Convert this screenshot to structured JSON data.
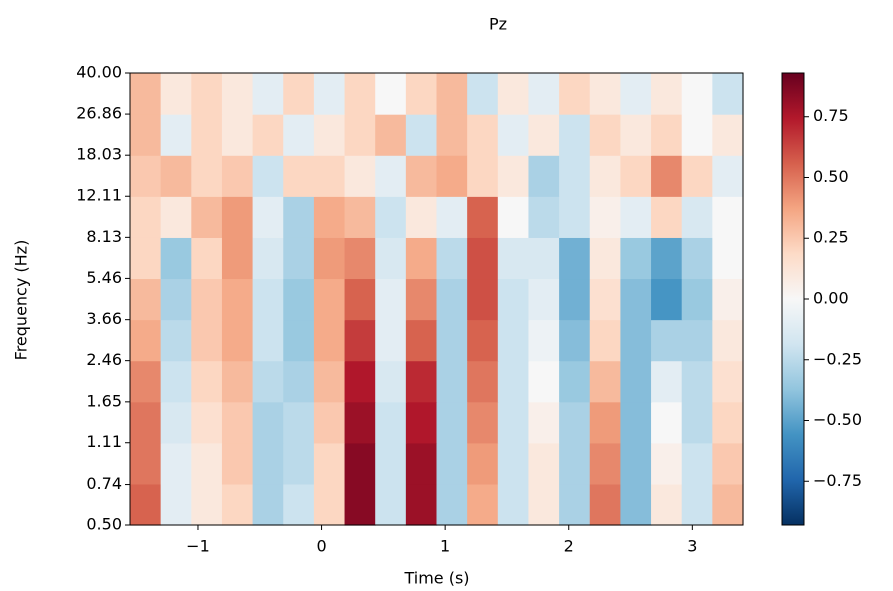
{
  "chart_data": {
    "type": "heatmap",
    "title": "Pz",
    "xlabel": "Time (s)",
    "ylabel": "Frequency (Hz)",
    "xlim": [
      -1.55,
      3.41
    ],
    "xticks": [
      {
        "value": -1,
        "label": "−1"
      },
      0,
      1,
      2,
      3
    ],
    "ylim": [
      0.5,
      40
    ],
    "ylog": true,
    "yticks": [
      {
        "value": 0.5,
        "label": "0.50"
      },
      {
        "value": 0.74,
        "label": "0.74"
      },
      {
        "value": 1.11,
        "label": "1.11"
      },
      {
        "value": 1.65,
        "label": "1.65"
      },
      {
        "value": 2.46,
        "label": "2.46"
      },
      {
        "value": 3.66,
        "label": "3.66"
      },
      {
        "value": 5.46,
        "label": "5.46"
      },
      {
        "value": 8.13,
        "label": "8.13"
      },
      {
        "value": 12.11,
        "label": "12.11"
      },
      {
        "value": 18.03,
        "label": "18.03"
      },
      {
        "value": 26.86,
        "label": "26.86"
      },
      {
        "value": 40,
        "label": "40.00"
      }
    ],
    "clim": [
      -0.93,
      0.93
    ],
    "cticks": [
      {
        "value": -0.75,
        "label": "−0.75"
      },
      {
        "value": -0.5,
        "label": "−0.50"
      },
      {
        "value": -0.25,
        "label": "−0.25"
      },
      {
        "value": 0,
        "label": "0.00"
      },
      {
        "value": 0.25,
        "label": "0.25"
      },
      {
        "value": 0.5,
        "label": "0.50"
      },
      {
        "value": 0.75,
        "label": "0.75"
      }
    ],
    "colormap": [
      "#053061",
      "#2166ac",
      "#4393c3",
      "#92c5de",
      "#d1e5f0",
      "#f7f7f7",
      "#fddbc7",
      "#f4a582",
      "#d6604d",
      "#b2182b",
      "#67001f"
    ],
    "z": [
      [
        0.55,
        -0.1,
        0.1,
        0.2,
        -0.3,
        -0.2,
        0.2,
        0.85,
        -0.2,
        0.8,
        -0.3,
        0.35,
        -0.2,
        0.1,
        -0.3,
        0.5,
        -0.4,
        0.1,
        -0.2,
        0.3
      ],
      [
        0.5,
        -0.1,
        0.1,
        0.25,
        -0.3,
        -0.25,
        0.2,
        0.85,
        -0.2,
        0.8,
        -0.3,
        0.4,
        -0.2,
        0.1,
        -0.3,
        0.45,
        -0.4,
        0.05,
        -0.2,
        0.25
      ],
      [
        0.5,
        -0.15,
        0.15,
        0.25,
        -0.3,
        -0.25,
        0.25,
        0.8,
        -0.2,
        0.75,
        -0.3,
        0.45,
        -0.2,
        0.05,
        -0.3,
        0.4,
        -0.4,
        0.0,
        -0.25,
        0.2
      ],
      [
        0.45,
        -0.2,
        0.2,
        0.3,
        -0.25,
        -0.3,
        0.3,
        0.75,
        -0.15,
        0.7,
        -0.3,
        0.5,
        -0.2,
        0.0,
        -0.35,
        0.3,
        -0.4,
        -0.1,
        -0.25,
        0.15
      ],
      [
        0.35,
        -0.25,
        0.25,
        0.35,
        -0.2,
        -0.35,
        0.35,
        0.65,
        -0.1,
        0.55,
        -0.3,
        0.55,
        -0.2,
        -0.05,
        -0.4,
        0.2,
        -0.4,
        -0.3,
        -0.3,
        0.1
      ],
      [
        0.3,
        -0.3,
        0.25,
        0.35,
        -0.2,
        -0.35,
        0.35,
        0.55,
        -0.1,
        0.45,
        -0.3,
        0.6,
        -0.2,
        -0.1,
        -0.45,
        0.15,
        -0.4,
        -0.55,
        -0.35,
        0.05
      ],
      [
        0.2,
        -0.35,
        0.2,
        0.4,
        -0.15,
        -0.3,
        0.4,
        0.45,
        -0.15,
        0.35,
        -0.25,
        0.6,
        -0.15,
        -0.15,
        -0.45,
        0.1,
        -0.35,
        -0.5,
        -0.3,
        0.0
      ],
      [
        0.2,
        0.1,
        0.3,
        0.4,
        -0.1,
        -0.3,
        0.35,
        0.3,
        -0.2,
        0.1,
        -0.1,
        0.55,
        0.0,
        -0.25,
        -0.2,
        0.05,
        -0.1,
        0.2,
        -0.15,
        0.0
      ],
      [
        0.25,
        0.3,
        0.2,
        0.25,
        -0.2,
        0.2,
        0.2,
        0.1,
        -0.1,
        0.3,
        0.35,
        0.2,
        0.1,
        -0.3,
        -0.2,
        0.1,
        0.2,
        0.45,
        0.2,
        -0.1
      ],
      [
        0.3,
        -0.1,
        0.2,
        0.1,
        0.2,
        -0.1,
        0.1,
        0.2,
        0.3,
        -0.2,
        0.3,
        0.2,
        -0.1,
        0.1,
        -0.2,
        0.2,
        0.1,
        0.2,
        0.0,
        0.1
      ],
      [
        0.3,
        0.1,
        0.2,
        0.1,
        -0.1,
        0.2,
        -0.1,
        0.2,
        0.0,
        0.2,
        0.3,
        -0.2,
        0.1,
        -0.1,
        0.2,
        0.1,
        -0.1,
        0.1,
        0.0,
        -0.2
      ]
    ]
  }
}
